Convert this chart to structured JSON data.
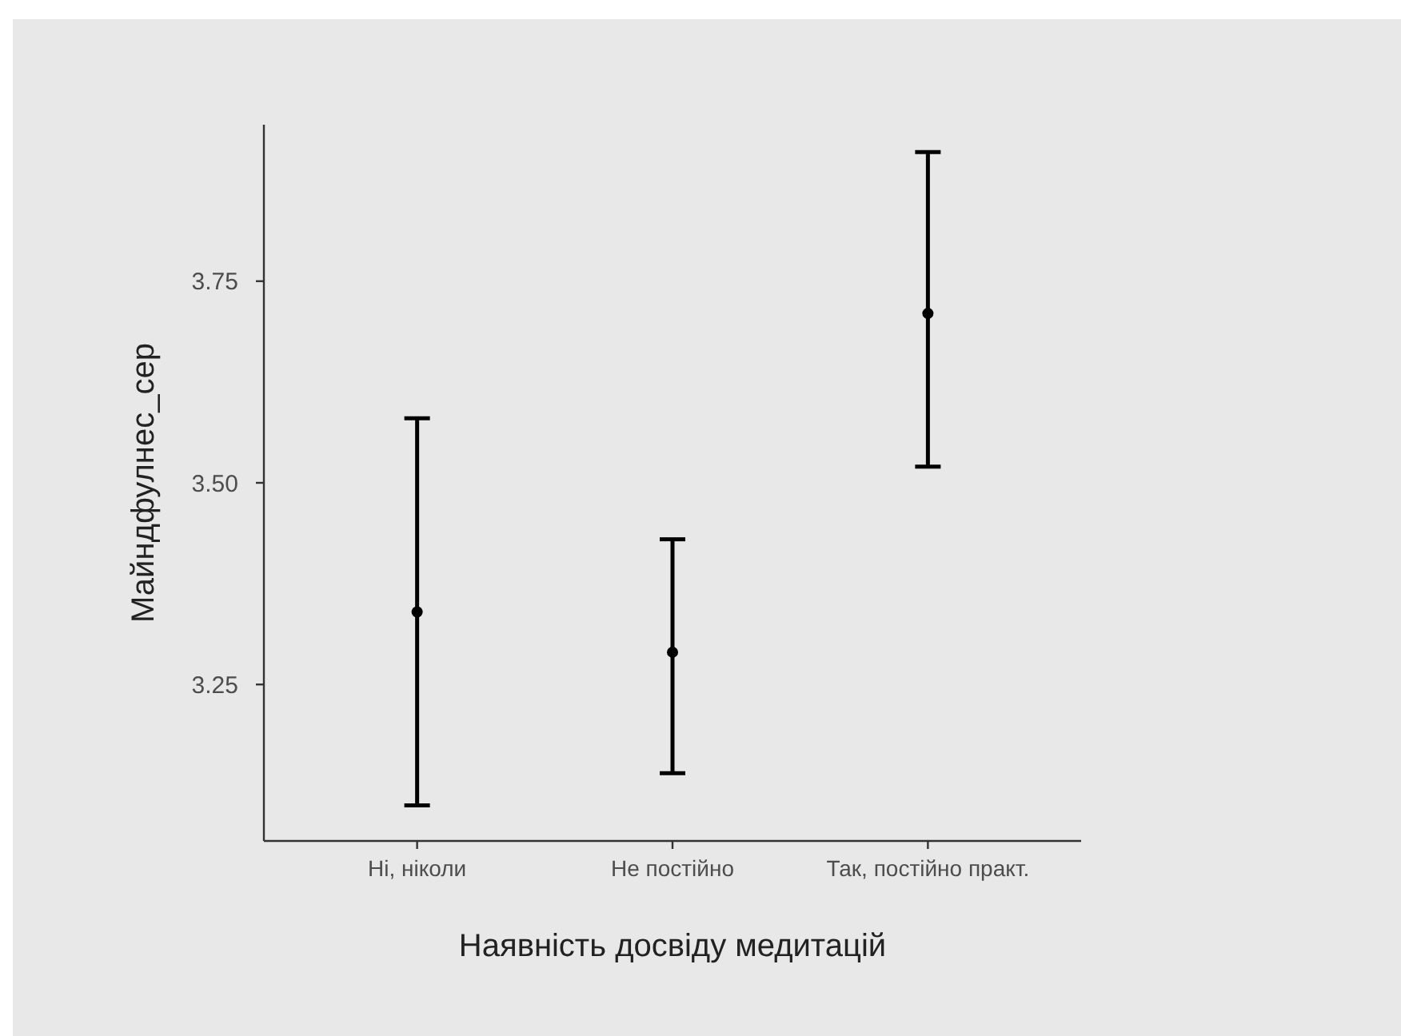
{
  "chart_data": {
    "type": "scatter",
    "xlabel": "Наявність досвіду медитацій",
    "ylabel": "Майндфулнес_сер",
    "categories": [
      "Ні, ніколи",
      "Не постійно",
      "Так, постійно практ."
    ],
    "series": [
      {
        "color": "#000000",
        "values": [
          3.34,
          3.29,
          3.71
        ],
        "errors": [
          [
            3.1,
            3.58
          ],
          [
            3.14,
            3.43
          ],
          [
            3.52,
            3.91
          ]
        ]
      }
    ],
    "ylim": [
      3.056,
      3.944
    ],
    "yticks": [
      3.25,
      {
        "value": 3.5,
        "label": "3.50"
      },
      3.75
    ],
    "grid": false,
    "marker": "circle"
  }
}
